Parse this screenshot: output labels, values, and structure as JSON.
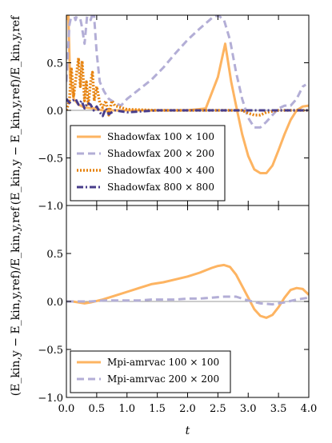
{
  "chart_data": [
    {
      "type": "line",
      "panel": "top",
      "ylabel": "(E_kin,y − E_kin,y,ref)/E_kin,y,ref",
      "xlabel": "",
      "xlim": [
        0.0,
        4.0
      ],
      "ylim": [
        -1.0,
        1.0
      ],
      "yticks": [
        "−1.0",
        "−0.5",
        "0.0",
        "0.5"
      ],
      "xticks": [],
      "reference_line": 0.0,
      "legend": "lower-left",
      "series": [
        {
          "name": "Shadowfax 100 × 100",
          "color": "#fdb462",
          "dash": "solid",
          "x": [
            0.0,
            0.03,
            0.06,
            0.12,
            0.2,
            0.3,
            0.45,
            0.6,
            0.8,
            1.0,
            1.3,
            1.6,
            2.0,
            2.3,
            2.5,
            2.62,
            2.72,
            2.8,
            2.9,
            3.0,
            3.1,
            3.2,
            3.3,
            3.4,
            3.5,
            3.6,
            3.7,
            3.8,
            3.9,
            4.0
          ],
          "y": [
            0.95,
            1.05,
            0.35,
            0.12,
            0.06,
            0.03,
            0.02,
            0.0,
            0.0,
            0.0,
            0.0,
            0.0,
            0.0,
            0.02,
            0.35,
            0.7,
            0.3,
            0.05,
            -0.25,
            -0.48,
            -0.62,
            -0.66,
            -0.66,
            -0.58,
            -0.42,
            -0.25,
            -0.1,
            0.0,
            0.04,
            0.05
          ]
        },
        {
          "name": "Shadowfax 200 × 200",
          "color": "#b3aed6",
          "dash": "dashed",
          "x": [
            0.0,
            0.05,
            0.1,
            0.15,
            0.2,
            0.25,
            0.3,
            0.35,
            0.4,
            0.45,
            0.5,
            0.55,
            0.62,
            0.7,
            0.8,
            0.9,
            1.0,
            1.2,
            1.4,
            1.6,
            1.8,
            2.0,
            2.2,
            2.4,
            2.5,
            2.6,
            2.7,
            2.8,
            2.9,
            3.0,
            3.1,
            3.2,
            3.3,
            3.4,
            3.5,
            3.6,
            3.7,
            3.8,
            3.9,
            3.95
          ],
          "y": [
            0.3,
            0.9,
            1.05,
            0.95,
            1.05,
            0.9,
            0.7,
            1.05,
            0.95,
            1.05,
            0.6,
            0.3,
            0.2,
            0.12,
            0.08,
            0.05,
            0.12,
            0.22,
            0.32,
            0.45,
            0.6,
            0.74,
            0.86,
            0.97,
            1.0,
            0.95,
            0.74,
            0.4,
            0.12,
            -0.08,
            -0.18,
            -0.18,
            -0.12,
            -0.05,
            0.02,
            0.05,
            0.05,
            0.12,
            0.25,
            0.27
          ]
        },
        {
          "name": "Shadowfax 400 × 400",
          "color": "#e6820e",
          "dash": "dotted",
          "x": [
            0.0,
            0.05,
            0.08,
            0.12,
            0.16,
            0.2,
            0.23,
            0.26,
            0.3,
            0.33,
            0.36,
            0.4,
            0.43,
            0.46,
            0.5,
            0.55,
            0.6,
            0.65,
            0.7,
            0.75,
            0.8,
            1.0,
            1.5,
            2.0,
            2.5,
            2.7,
            2.9,
            3.0,
            3.1,
            3.2,
            3.3,
            3.5,
            3.7,
            3.9,
            4.0
          ],
          "y": [
            0.0,
            0.1,
            0.45,
            0.15,
            0.35,
            0.55,
            0.25,
            0.52,
            0.1,
            0.3,
            0.05,
            0.3,
            0.4,
            0.1,
            0.25,
            0.08,
            0.03,
            0.1,
            -0.05,
            0.1,
            0.05,
            0.01,
            0.0,
            0.0,
            0.0,
            0.0,
            0.0,
            -0.03,
            -0.05,
            -0.05,
            -0.02,
            0.0,
            0.0,
            0.0,
            0.0
          ]
        },
        {
          "name": "Shadowfax 800 × 800",
          "color": "#483d8b",
          "dash": "dashdot",
          "x": [
            0.0,
            0.05,
            0.1,
            0.15,
            0.2,
            0.25,
            0.3,
            0.35,
            0.4,
            0.45,
            0.5,
            0.55,
            0.6,
            0.65,
            0.7,
            0.8,
            1.0,
            1.5,
            2.0,
            2.5,
            3.0,
            3.5,
            4.0
          ],
          "y": [
            0.12,
            0.08,
            0.1,
            0.12,
            0.06,
            0.1,
            0.02,
            0.08,
            0.06,
            0.0,
            0.04,
            -0.02,
            -0.06,
            0.02,
            -0.04,
            0.0,
            -0.02,
            0.0,
            0.0,
            0.0,
            0.0,
            0.0,
            0.0
          ]
        }
      ]
    },
    {
      "type": "line",
      "panel": "bottom",
      "ylabel": "(E_kin,y − E_kin,y,ref)/E_kin,y,ref",
      "xlabel": "t",
      "xlim": [
        0.0,
        4.0
      ],
      "ylim": [
        -1.0,
        1.0
      ],
      "yticks": [
        "−1.0",
        "−0.5",
        "0.0",
        "0.5"
      ],
      "xticks": [
        "0.0",
        "0.5",
        "1.0",
        "1.5",
        "2.0",
        "2.5",
        "3.0",
        "3.5",
        "4.0"
      ],
      "reference_line": 0.0,
      "legend": "lower-left",
      "series": [
        {
          "name": "Mpi-amrvac 100 × 100",
          "color": "#fdb462",
          "dash": "solid",
          "x": [
            0.0,
            0.1,
            0.2,
            0.3,
            0.4,
            0.6,
            0.8,
            1.0,
            1.2,
            1.4,
            1.6,
            1.8,
            2.0,
            2.2,
            2.4,
            2.5,
            2.6,
            2.7,
            2.8,
            2.9,
            3.0,
            3.1,
            3.2,
            3.3,
            3.4,
            3.5,
            3.6,
            3.7,
            3.8,
            3.9,
            4.0
          ],
          "y": [
            0.0,
            0.0,
            -0.01,
            -0.02,
            -0.01,
            0.02,
            0.06,
            0.1,
            0.14,
            0.18,
            0.2,
            0.23,
            0.26,
            0.3,
            0.35,
            0.37,
            0.38,
            0.36,
            0.28,
            0.16,
            0.04,
            -0.08,
            -0.15,
            -0.17,
            -0.14,
            -0.06,
            0.04,
            0.12,
            0.14,
            0.13,
            0.07
          ]
        },
        {
          "name": "Mpi-amrvac 200 × 200",
          "color": "#b3aed6",
          "dash": "dashed",
          "x": [
            0.0,
            0.2,
            0.4,
            0.6,
            0.8,
            1.0,
            1.2,
            1.4,
            1.6,
            1.8,
            2.0,
            2.2,
            2.4,
            2.6,
            2.8,
            3.0,
            3.2,
            3.4,
            3.6,
            3.8,
            4.0
          ],
          "y": [
            0.0,
            0.0,
            0.0,
            0.01,
            0.01,
            0.01,
            0.01,
            0.02,
            0.02,
            0.02,
            0.03,
            0.03,
            0.04,
            0.05,
            0.05,
            0.01,
            -0.02,
            -0.03,
            -0.01,
            0.02,
            0.04
          ]
        }
      ]
    }
  ]
}
